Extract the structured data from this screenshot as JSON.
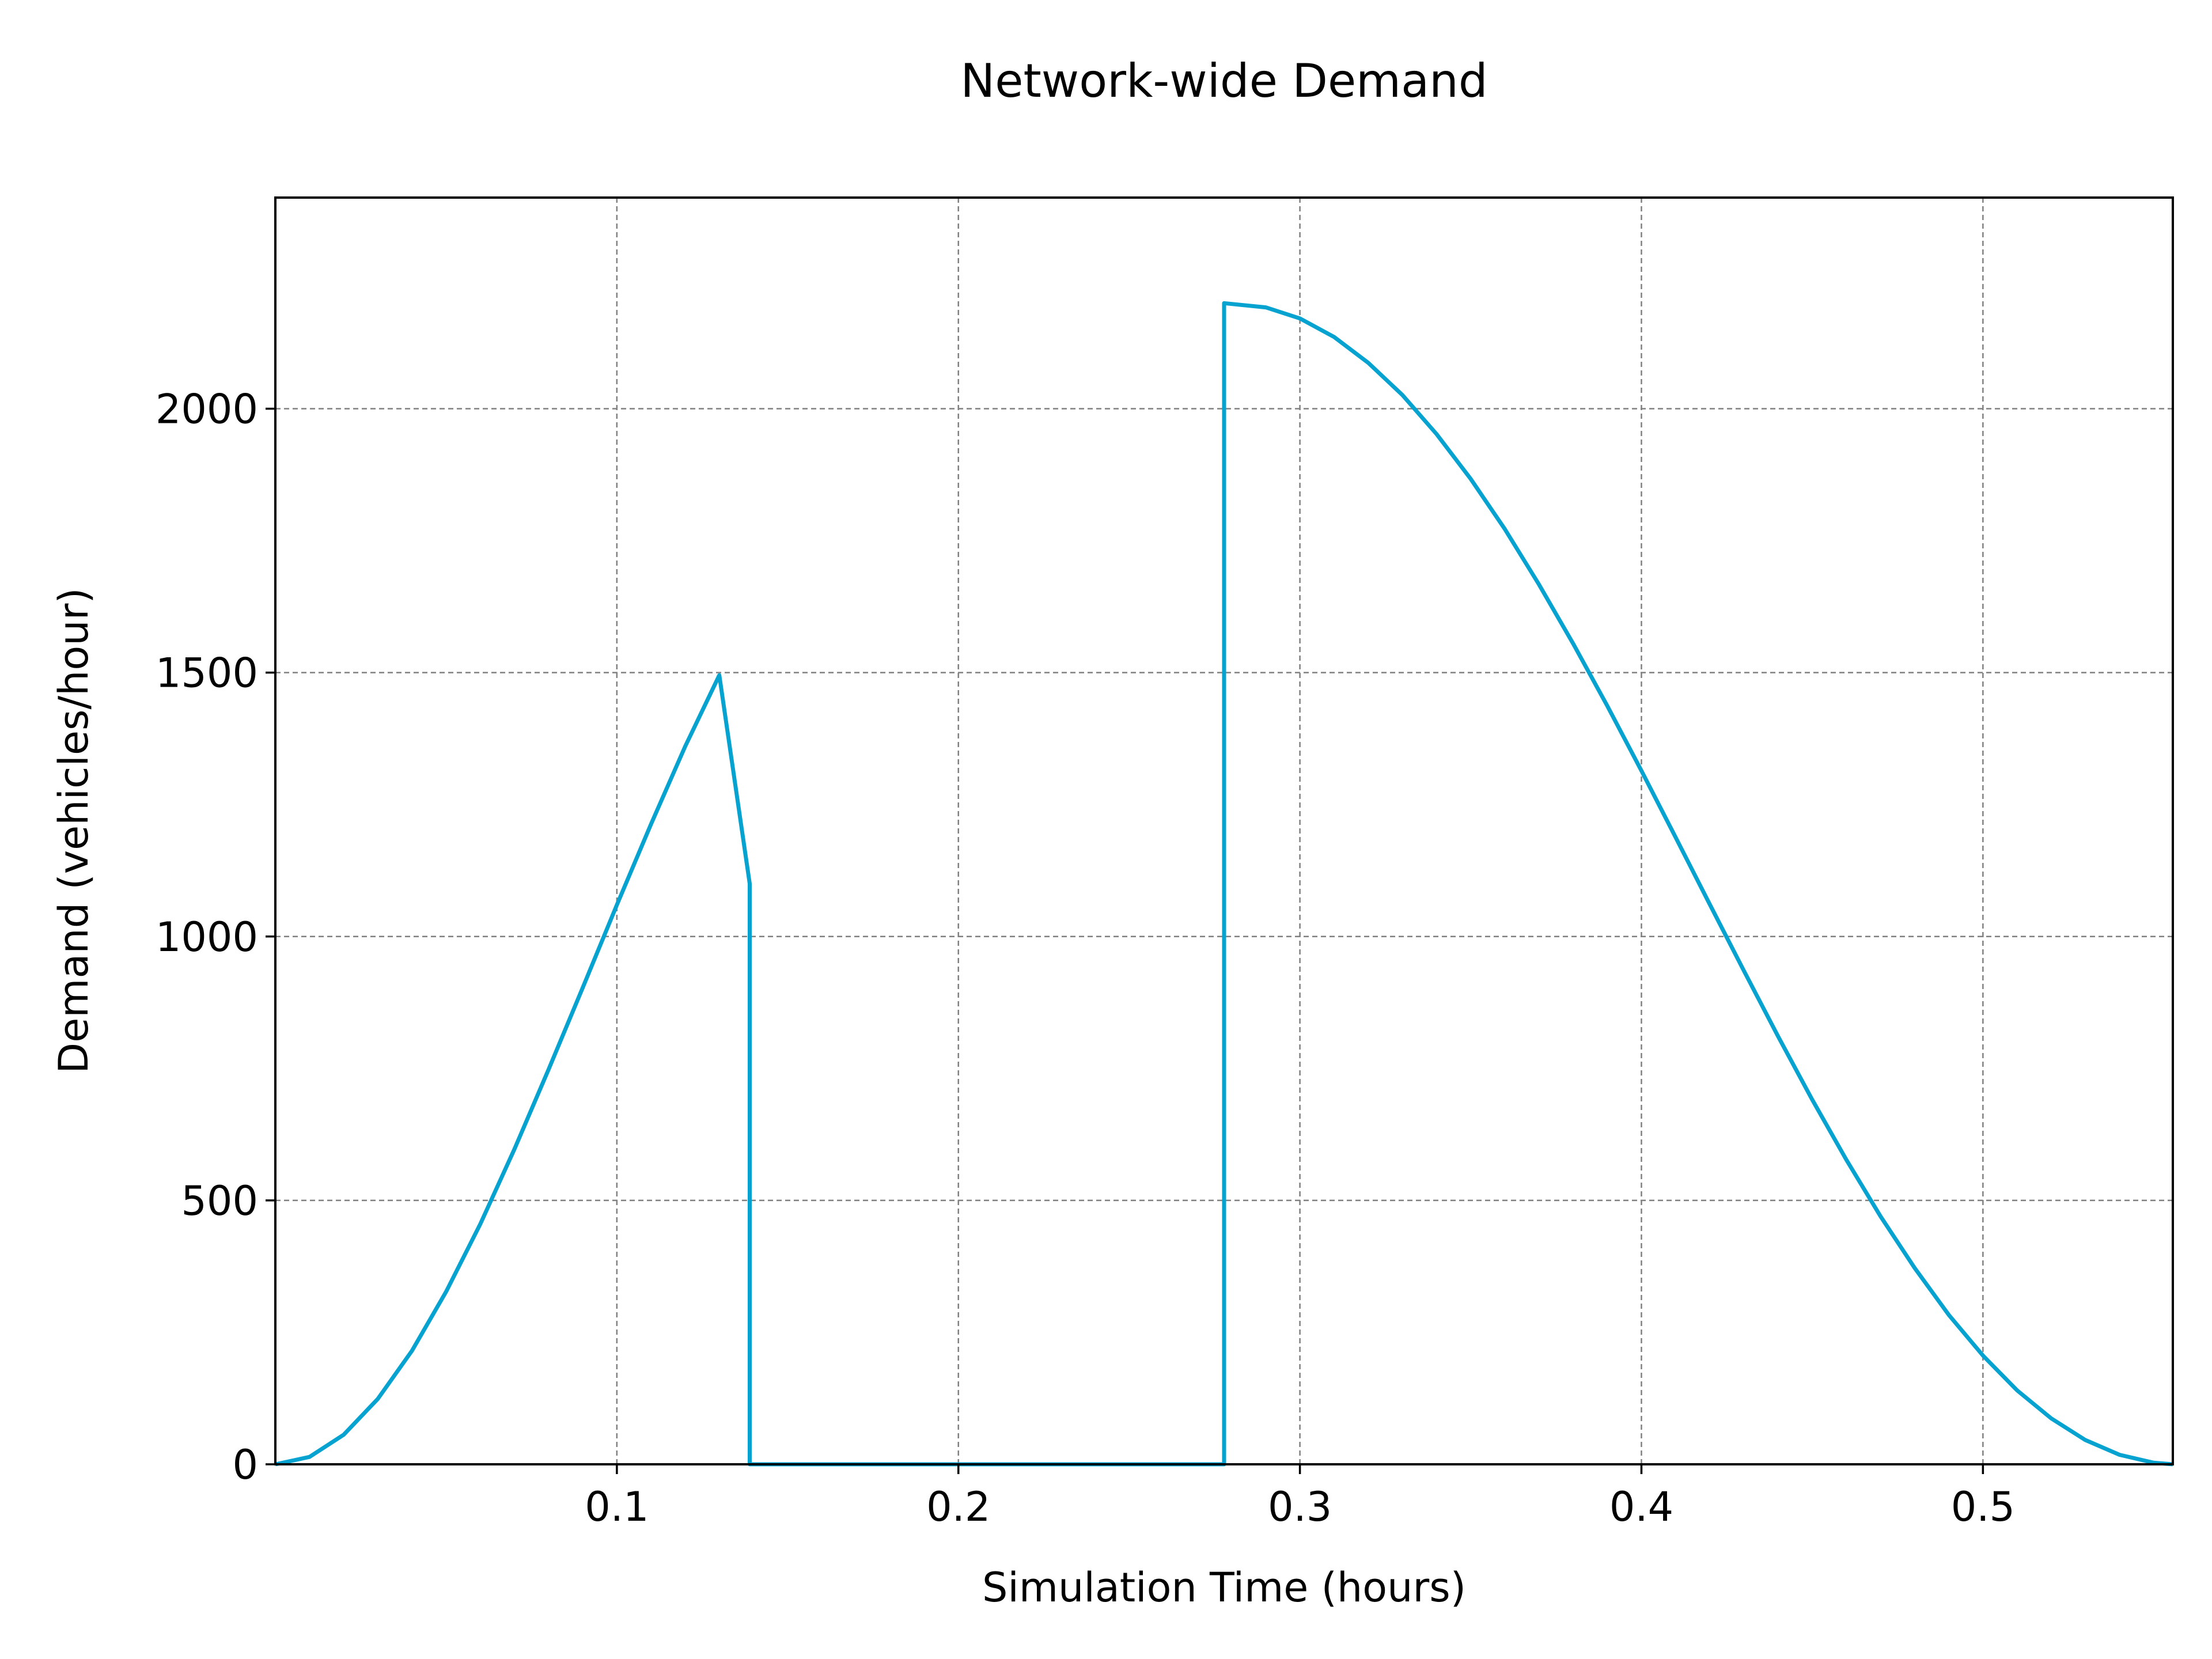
{
  "colors": {
    "series": "#06a3d1",
    "grid": "#808080",
    "axis": "#000000",
    "background": "#ffffff"
  },
  "chart_data": {
    "type": "line",
    "title": "Network-wide Demand",
    "xlabel": "Simulation Time (hours)",
    "ylabel": "Demand (vehicles/hour)",
    "xlim": [
      0.0,
      0.5556
    ],
    "ylim": [
      0,
      2400
    ],
    "xticks": [
      0.1,
      0.2,
      0.3,
      0.4,
      0.5
    ],
    "xtick_labels": [
      "0.1",
      "0.2",
      "0.3",
      "0.4",
      "0.5"
    ],
    "yticks": [
      0,
      500,
      1000,
      1500,
      2000
    ],
    "ytick_labels": [
      "0",
      "500",
      "1000",
      "1500",
      "2000"
    ],
    "grid": true,
    "legend": "none",
    "series": [
      {
        "x": [
          0.0,
          0.01,
          0.02,
          0.03,
          0.04,
          0.05,
          0.06,
          0.07,
          0.08,
          0.09,
          0.1,
          0.11,
          0.12,
          0.13,
          0.1389,
          0.1389,
          0.2,
          0.2778,
          0.2778,
          0.29,
          0.3,
          0.31,
          0.32,
          0.33,
          0.34,
          0.35,
          0.36,
          0.37,
          0.38,
          0.39,
          0.4,
          0.41,
          0.42,
          0.43,
          0.44,
          0.45,
          0.46,
          0.47,
          0.48,
          0.49,
          0.5,
          0.51,
          0.52,
          0.53,
          0.54,
          0.55,
          0.5556
        ],
        "y": [
          0,
          14,
          56,
          124,
          215,
          327,
          455,
          597,
          748,
          903,
          1060,
          1213,
          1360,
          1495,
          1100,
          0,
          0,
          0,
          2200,
          2192,
          2171,
          2136,
          2087,
          2026,
          1952,
          1867,
          1772,
          1667,
          1555,
          1437,
          1314,
          1188,
          1061,
          935,
          811,
          691,
          577,
          470,
          372,
          283,
          206,
          140,
          87,
          46,
          18,
          3,
          0
        ]
      }
    ]
  }
}
